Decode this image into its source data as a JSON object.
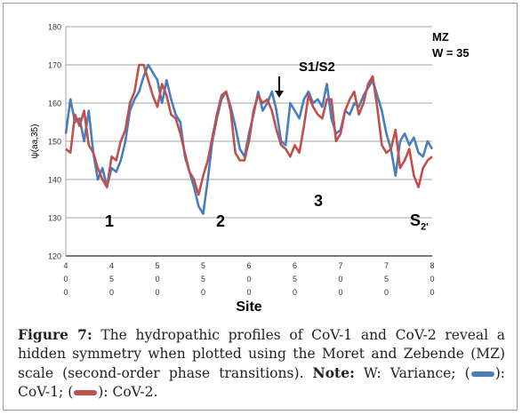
{
  "chart_data": {
    "type": "line",
    "title": "",
    "xlabel": "Site",
    "ylabel": "ψ(aa,35)",
    "xlim": [
      400,
      800
    ],
    "ylim": [
      120,
      180
    ],
    "yticks": [
      120,
      130,
      140,
      150,
      160,
      170,
      180
    ],
    "xticks": [
      400,
      450,
      500,
      550,
      600,
      650,
      700,
      750,
      800
    ],
    "xtick_labels": [
      [
        "4",
        "0",
        "0"
      ],
      [
        "4",
        "5",
        "0"
      ],
      [
        "5",
        "0",
        "0"
      ],
      [
        "5",
        "5",
        "0"
      ],
      [
        "6",
        "0",
        "0"
      ],
      [
        "6",
        "5",
        "0"
      ],
      [
        "7",
        "0",
        "0"
      ],
      [
        "7",
        "5",
        "0"
      ],
      [
        "8",
        "0",
        "0"
      ]
    ],
    "grid": "horizontal",
    "legend": "none",
    "series": [
      {
        "name": "CoV-1",
        "color": "#4a7ebb",
        "x": [
          400,
          405,
          410,
          415,
          420,
          425,
          430,
          435,
          440,
          445,
          450,
          455,
          460,
          465,
          470,
          475,
          480,
          485,
          490,
          495,
          500,
          505,
          510,
          515,
          520,
          525,
          530,
          535,
          540,
          545,
          550,
          555,
          560,
          565,
          570,
          575,
          580,
          585,
          590,
          595,
          600,
          605,
          610,
          615,
          620,
          625,
          630,
          635,
          640,
          645,
          650,
          655,
          660,
          665,
          670,
          675,
          680,
          685,
          690,
          695,
          700,
          705,
          710,
          715,
          720,
          725,
          730,
          735,
          740,
          745,
          750,
          755,
          760,
          765,
          770,
          775,
          780,
          785,
          790,
          795,
          800
        ],
        "values": [
          152,
          161,
          155,
          156,
          150,
          158,
          147,
          140,
          143,
          138,
          143,
          142,
          145,
          150,
          158,
          161,
          163,
          167,
          170,
          168,
          166,
          160,
          166,
          161,
          157,
          155,
          146,
          142,
          138,
          133,
          131,
          140,
          150,
          156,
          161,
          163,
          159,
          154,
          148,
          146,
          152,
          157,
          163,
          158,
          160,
          163,
          158,
          150,
          149,
          160,
          158,
          156,
          161,
          163,
          160,
          161,
          159,
          165,
          156,
          152,
          153,
          158,
          157,
          160,
          159,
          162,
          164,
          166,
          162,
          158,
          152,
          148,
          141,
          150,
          152,
          149,
          151,
          147,
          146,
          150,
          148
        ]
      },
      {
        "name": "CoV-2",
        "color": "#c0504d",
        "x": [
          400,
          405,
          410,
          415,
          420,
          425,
          430,
          435,
          440,
          445,
          450,
          455,
          460,
          465,
          470,
          475,
          480,
          485,
          490,
          495,
          500,
          505,
          510,
          515,
          520,
          525,
          530,
          535,
          540,
          545,
          550,
          555,
          560,
          565,
          570,
          575,
          580,
          585,
          590,
          595,
          600,
          605,
          610,
          615,
          620,
          625,
          630,
          635,
          640,
          645,
          650,
          655,
          660,
          665,
          670,
          675,
          680,
          685,
          690,
          695,
          700,
          705,
          710,
          715,
          720,
          725,
          730,
          735,
          740,
          745,
          750,
          755,
          760,
          765,
          770,
          775,
          780,
          785,
          790,
          795,
          800
        ],
        "values": [
          148,
          147,
          157,
          154,
          158,
          149,
          147,
          143,
          140,
          138,
          146,
          145,
          150,
          153,
          160,
          163,
          170,
          170,
          166,
          162,
          159,
          165,
          162,
          157,
          156,
          152,
          147,
          142,
          140,
          136,
          141,
          145,
          151,
          157,
          162,
          163,
          158,
          147,
          145,
          145,
          150,
          158,
          162,
          160,
          161,
          158,
          153,
          149,
          148,
          146,
          149,
          147,
          154,
          162,
          159,
          157,
          156,
          161,
          161,
          150,
          152,
          158,
          161,
          163,
          157,
          160,
          165,
          167,
          159,
          149,
          147,
          148,
          153,
          143,
          145,
          148,
          141,
          138,
          143,
          145,
          146
        ]
      }
    ],
    "annotations": [
      {
        "text": "MZ",
        "x": 700,
        "y": 176
      },
      {
        "text": "W = 35",
        "x": 700,
        "y": 172
      },
      {
        "text": "S1/S2",
        "x": 660,
        "y": 166
      },
      {
        "text": "1",
        "x": 445,
        "y": 128
      },
      {
        "text": "2",
        "x": 572,
        "y": 128
      },
      {
        "text": "3",
        "x": 680,
        "y": 133
      },
      {
        "text": "S",
        "x": 793,
        "y": 128
      },
      {
        "text": "2'",
        "x": 800,
        "y": 127
      }
    ]
  },
  "caption": {
    "figure_label": "Figure 7:",
    "text_1": "The hydropathic profiles of CoV-1 and CoV-2 reveal a hidden symmetry when plotted using the Moret and Zebende (MZ) scale (second-order phase transitions).",
    "note_label": "Note:",
    "text_2": "W: Variance; (",
    "text_3": "): CoV-1; (",
    "text_4": "): CoV-2."
  }
}
